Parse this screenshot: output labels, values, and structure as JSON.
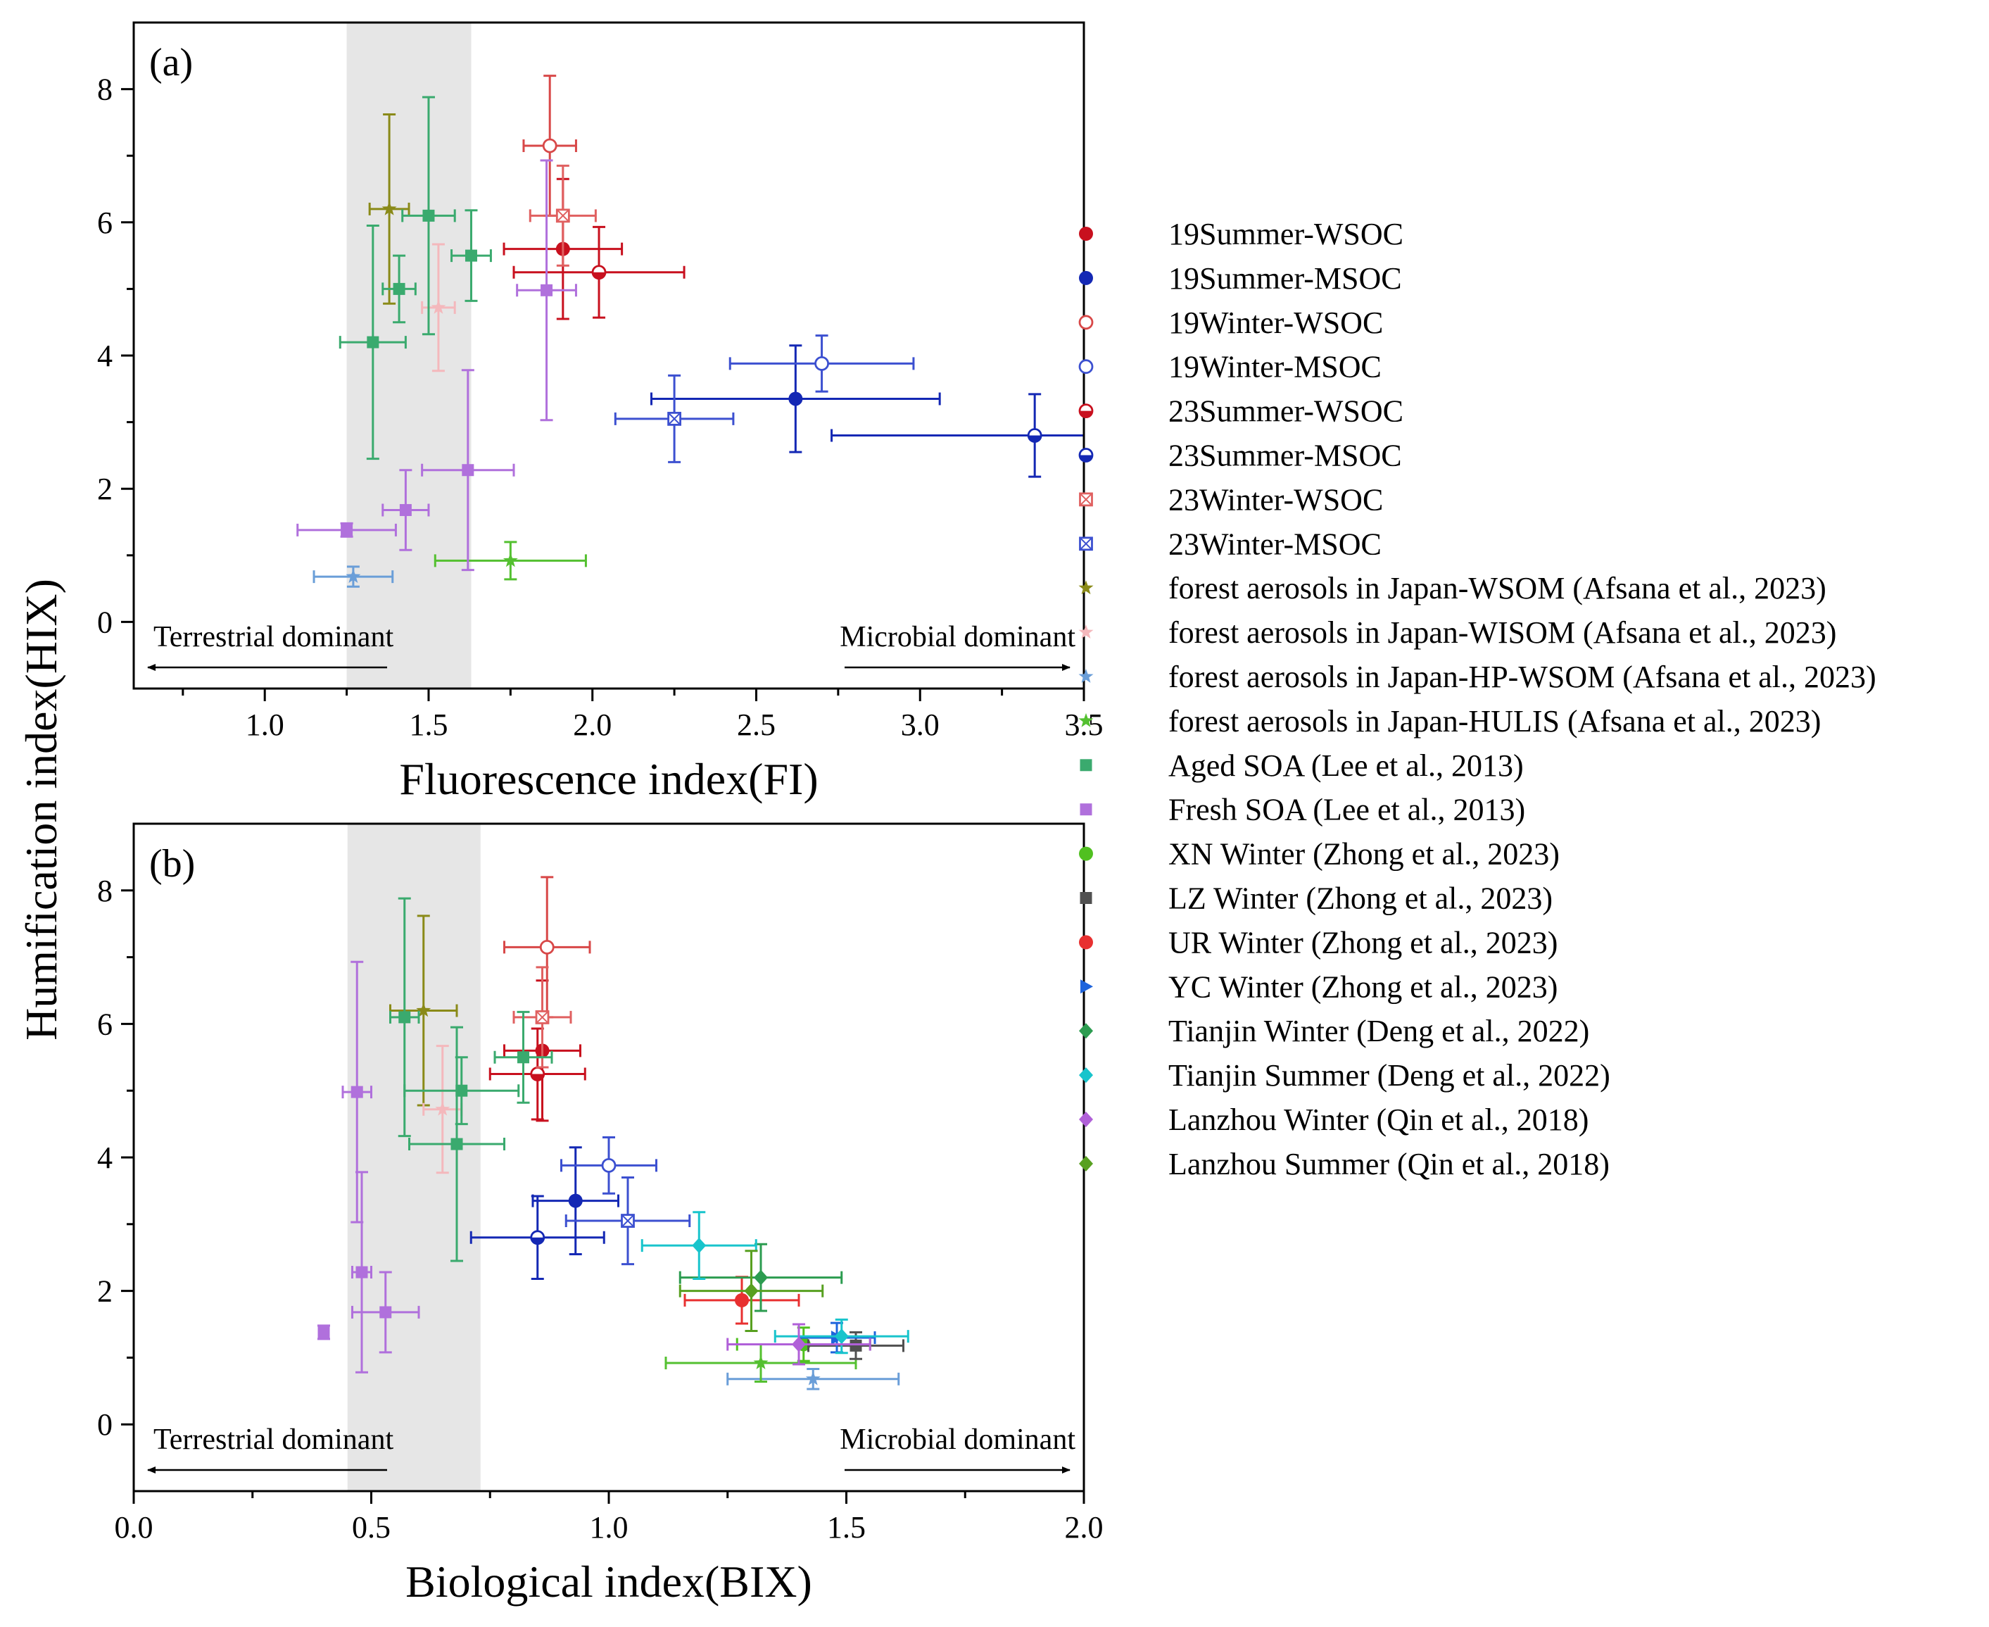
{
  "figure_axis_label": "Humification index(HIX)",
  "chart_data": [
    {
      "type": "scatter",
      "panel_label": "(a)",
      "xlabel": "Fluorescence index(FI)",
      "ylabel": "Humification index(HIX)",
      "xlim": [
        0.6,
        3.5
      ],
      "ylim": [
        -1.0,
        9.0
      ],
      "xticks": [
        1.0,
        1.5,
        2.0,
        2.5,
        3.0,
        3.5
      ],
      "xtick_labels": [
        "1.0",
        "1.5",
        "2.0",
        "2.5",
        "3.0",
        "3.5"
      ],
      "yticks": [
        0,
        2,
        4,
        6,
        8
      ],
      "ytick_labels": [
        "0",
        "2",
        "4",
        "6",
        "8"
      ],
      "shaded_x_range": [
        1.25,
        1.63
      ],
      "annotations": {
        "left": "Terrestrial dominant",
        "right": "Microbial dominant"
      },
      "points": [
        {
          "series": 0,
          "x": 1.91,
          "y": 5.6,
          "xerr": 0.18,
          "yerr": 1.05
        },
        {
          "series": 1,
          "x": 2.62,
          "y": 3.35,
          "xerr": 0.44,
          "yerr": 0.8
        },
        {
          "series": 2,
          "x": 1.87,
          "y": 7.15,
          "xerr": 0.08,
          "yerr": 1.05
        },
        {
          "series": 3,
          "x": 2.7,
          "y": 3.88,
          "xerr": 0.28,
          "yerr": 0.42
        },
        {
          "series": 4,
          "x": 2.02,
          "y": 5.25,
          "xerr": 0.26,
          "yerr": 0.68
        },
        {
          "series": 5,
          "x": 3.35,
          "y": 2.8,
          "xerr": 0.62,
          "yerr": 0.62
        },
        {
          "series": 6,
          "x": 1.91,
          "y": 6.1,
          "xerr": 0.1,
          "yerr": 0.75
        },
        {
          "series": 7,
          "x": 2.25,
          "y": 3.05,
          "xerr": 0.18,
          "yerr": 0.65
        },
        {
          "series": 8,
          "x": 1.38,
          "y": 6.2,
          "xerr": 0.06,
          "yerr": 1.42
        },
        {
          "series": 9,
          "x": 1.53,
          "y": 4.72,
          "xerr": 0.05,
          "yerr": 0.95
        },
        {
          "series": 10,
          "x": 1.27,
          "y": 0.68,
          "xerr": 0.12,
          "yerr": 0.15
        },
        {
          "series": 11,
          "x": 1.75,
          "y": 0.92,
          "xerr": 0.23,
          "yerr": 0.28
        },
        {
          "series": 12,
          "x": 1.5,
          "y": 6.1,
          "xerr": 0.08,
          "yerr": 1.78
        },
        {
          "series": 12,
          "x": 1.63,
          "y": 5.5,
          "xerr": 0.06,
          "yerr": 0.68
        },
        {
          "series": 12,
          "x": 1.41,
          "y": 5.0,
          "xerr": 0.05,
          "yerr": 0.5
        },
        {
          "series": 12,
          "x": 1.33,
          "y": 4.2,
          "xerr": 0.1,
          "yerr": 1.75
        },
        {
          "series": 13,
          "x": 1.25,
          "y": 1.38,
          "xerr": 0.15,
          "yerr": 0.1
        },
        {
          "series": 13,
          "x": 1.43,
          "y": 1.68,
          "xerr": 0.07,
          "yerr": 0.6
        },
        {
          "series": 13,
          "x": 1.62,
          "y": 2.28,
          "xerr": 0.14,
          "yerr": 1.5
        },
        {
          "series": 13,
          "x": 1.86,
          "y": 4.98,
          "xerr": 0.09,
          "yerr": 1.95
        }
      ]
    },
    {
      "type": "scatter",
      "panel_label": "(b)",
      "xlabel": "Biological index(BIX)",
      "ylabel": "Humification index(HIX)",
      "xlim": [
        0.0,
        2.0
      ],
      "ylim": [
        -1.0,
        9.0
      ],
      "xticks": [
        0.0,
        0.5,
        1.0,
        1.5,
        2.0
      ],
      "xtick_labels": [
        "0.0",
        "0.5",
        "1.0",
        "1.5",
        "2.0"
      ],
      "yticks": [
        0,
        2,
        4,
        6,
        8
      ],
      "ytick_labels": [
        "0",
        "2",
        "4",
        "6",
        "8"
      ],
      "shaded_x_range": [
        0.45,
        0.73
      ],
      "annotations": {
        "left": "Terrestrial dominant",
        "right": "Microbial dominant"
      },
      "points": [
        {
          "series": 0,
          "x": 0.86,
          "y": 5.6,
          "xerr": 0.08,
          "yerr": 1.05
        },
        {
          "series": 1,
          "x": 0.93,
          "y": 3.35,
          "xerr": 0.09,
          "yerr": 0.8
        },
        {
          "series": 2,
          "x": 0.87,
          "y": 7.15,
          "xerr": 0.09,
          "yerr": 1.05
        },
        {
          "series": 3,
          "x": 1.0,
          "y": 3.88,
          "xerr": 0.1,
          "yerr": 0.42
        },
        {
          "series": 4,
          "x": 0.85,
          "y": 5.25,
          "xerr": 0.1,
          "yerr": 0.68
        },
        {
          "series": 5,
          "x": 0.85,
          "y": 2.8,
          "xerr": 0.14,
          "yerr": 0.62
        },
        {
          "series": 6,
          "x": 0.86,
          "y": 6.1,
          "xerr": 0.06,
          "yerr": 0.75
        },
        {
          "series": 7,
          "x": 1.04,
          "y": 3.05,
          "xerr": 0.13,
          "yerr": 0.65
        },
        {
          "series": 8,
          "x": 0.61,
          "y": 6.2,
          "xerr": 0.07,
          "yerr": 1.42
        },
        {
          "series": 9,
          "x": 0.65,
          "y": 4.72,
          "xerr": 0.04,
          "yerr": 0.95
        },
        {
          "series": 10,
          "x": 1.43,
          "y": 0.68,
          "xerr": 0.18,
          "yerr": 0.15
        },
        {
          "series": 11,
          "x": 1.32,
          "y": 0.92,
          "xerr": 0.2,
          "yerr": 0.28
        },
        {
          "series": 12,
          "x": 0.57,
          "y": 6.1,
          "xerr": 0.03,
          "yerr": 1.78
        },
        {
          "series": 12,
          "x": 0.82,
          "y": 5.5,
          "xerr": 0.06,
          "yerr": 0.68
        },
        {
          "series": 12,
          "x": 0.69,
          "y": 5.0,
          "xerr": 0.12,
          "yerr": 0.5
        },
        {
          "series": 12,
          "x": 0.68,
          "y": 4.2,
          "xerr": 0.1,
          "yerr": 1.75
        },
        {
          "series": 13,
          "x": 0.4,
          "y": 1.38,
          "xerr": 0.01,
          "yerr": 0.1
        },
        {
          "series": 13,
          "x": 0.53,
          "y": 1.68,
          "xerr": 0.07,
          "yerr": 0.6
        },
        {
          "series": 13,
          "x": 0.48,
          "y": 2.28,
          "xerr": 0.02,
          "yerr": 1.5
        },
        {
          "series": 13,
          "x": 0.47,
          "y": 4.98,
          "xerr": 0.03,
          "yerr": 1.95
        },
        {
          "series": 14,
          "x": 1.41,
          "y": 1.2,
          "xerr": 0.14,
          "yerr": 0.25
        },
        {
          "series": 15,
          "x": 1.52,
          "y": 1.18,
          "xerr": 0.1,
          "yerr": 0.2
        },
        {
          "series": 16,
          "x": 1.28,
          "y": 1.86,
          "xerr": 0.12,
          "yerr": 0.35
        },
        {
          "series": 17,
          "x": 1.48,
          "y": 1.3,
          "xerr": 0.08,
          "yerr": 0.22
        },
        {
          "series": 18,
          "x": 1.32,
          "y": 2.2,
          "xerr": 0.17,
          "yerr": 0.5
        },
        {
          "series": 19,
          "x": 1.19,
          "y": 2.68,
          "xerr": 0.12,
          "yerr": 0.5
        },
        {
          "series": 19,
          "x": 1.49,
          "y": 1.32,
          "xerr": 0.14,
          "yerr": 0.25
        },
        {
          "series": 20,
          "x": 1.4,
          "y": 1.2,
          "xerr": 0.15,
          "yerr": 0.3
        },
        {
          "series": 21,
          "x": 1.3,
          "y": 2.0,
          "xerr": 0.15,
          "yerr": 0.6
        }
      ]
    }
  ],
  "legend": [
    {
      "name": "19Summer-WSOC",
      "color": "#c8101e",
      "marker": "circle"
    },
    {
      "name": "19Summer-MSOC",
      "color": "#1428b4",
      "marker": "circle"
    },
    {
      "name": "19Winter-WSOC",
      "color": "#d84848",
      "marker": "circle-open"
    },
    {
      "name": "19Winter-MSOC",
      "color": "#3c50d0",
      "marker": "circle-open"
    },
    {
      "name": "23Summer-WSOC",
      "color": "#c8101e",
      "marker": "half-circle"
    },
    {
      "name": "23Summer-MSOC",
      "color": "#1428b4",
      "marker": "half-circle"
    },
    {
      "name": "23Winter-WSOC",
      "color": "#e06060",
      "marker": "crossed-square"
    },
    {
      "name": "23Winter-MSOC",
      "color": "#3c50d0",
      "marker": "crossed-square"
    },
    {
      "name": "forest aerosols in Japan-WSOM (Afsana et al., 2023)",
      "color": "#8a8a18",
      "marker": "star"
    },
    {
      "name": "forest aerosols in Japan-WISOM (Afsana et al., 2023)",
      "color": "#f4b8bc",
      "marker": "star"
    },
    {
      "name": "forest aerosols in Japan-HP-WSOM (Afsana et al., 2023)",
      "color": "#6a9ed8",
      "marker": "star"
    },
    {
      "name": "forest aerosols in Japan-HULIS (Afsana et al., 2023)",
      "color": "#54c030",
      "marker": "star"
    },
    {
      "name": "Aged SOA (Lee et al., 2013)",
      "color": "#3aaa6e",
      "marker": "square"
    },
    {
      "name": "Fresh SOA (Lee et al., 2013)",
      "color": "#b070dc",
      "marker": "square"
    },
    {
      "name": "XN Winter (Zhong et al., 2023)",
      "color": "#50c020",
      "marker": "circle"
    },
    {
      "name": "LZ Winter (Zhong et al., 2023)",
      "color": "#505050",
      "marker": "square"
    },
    {
      "name": "UR Winter (Zhong et al., 2023)",
      "color": "#e83030",
      "marker": "circle"
    },
    {
      "name": "YC Winter (Zhong et al., 2023)",
      "color": "#1e64dc",
      "marker": "triangle-right"
    },
    {
      "name": "Tianjin Winter (Deng et al., 2022)",
      "color": "#2c9c50",
      "marker": "diamond"
    },
    {
      "name": "Tianjin Summer (Deng et al., 2022)",
      "color": "#18c4cc",
      "marker": "diamond"
    },
    {
      "name": "Lanzhou Winter (Qin et al., 2018)",
      "color": "#b060d8",
      "marker": "diamond"
    },
    {
      "name": "Lanzhou Summer (Qin et al., 2018)",
      "color": "#58a020",
      "marker": "diamond"
    }
  ]
}
